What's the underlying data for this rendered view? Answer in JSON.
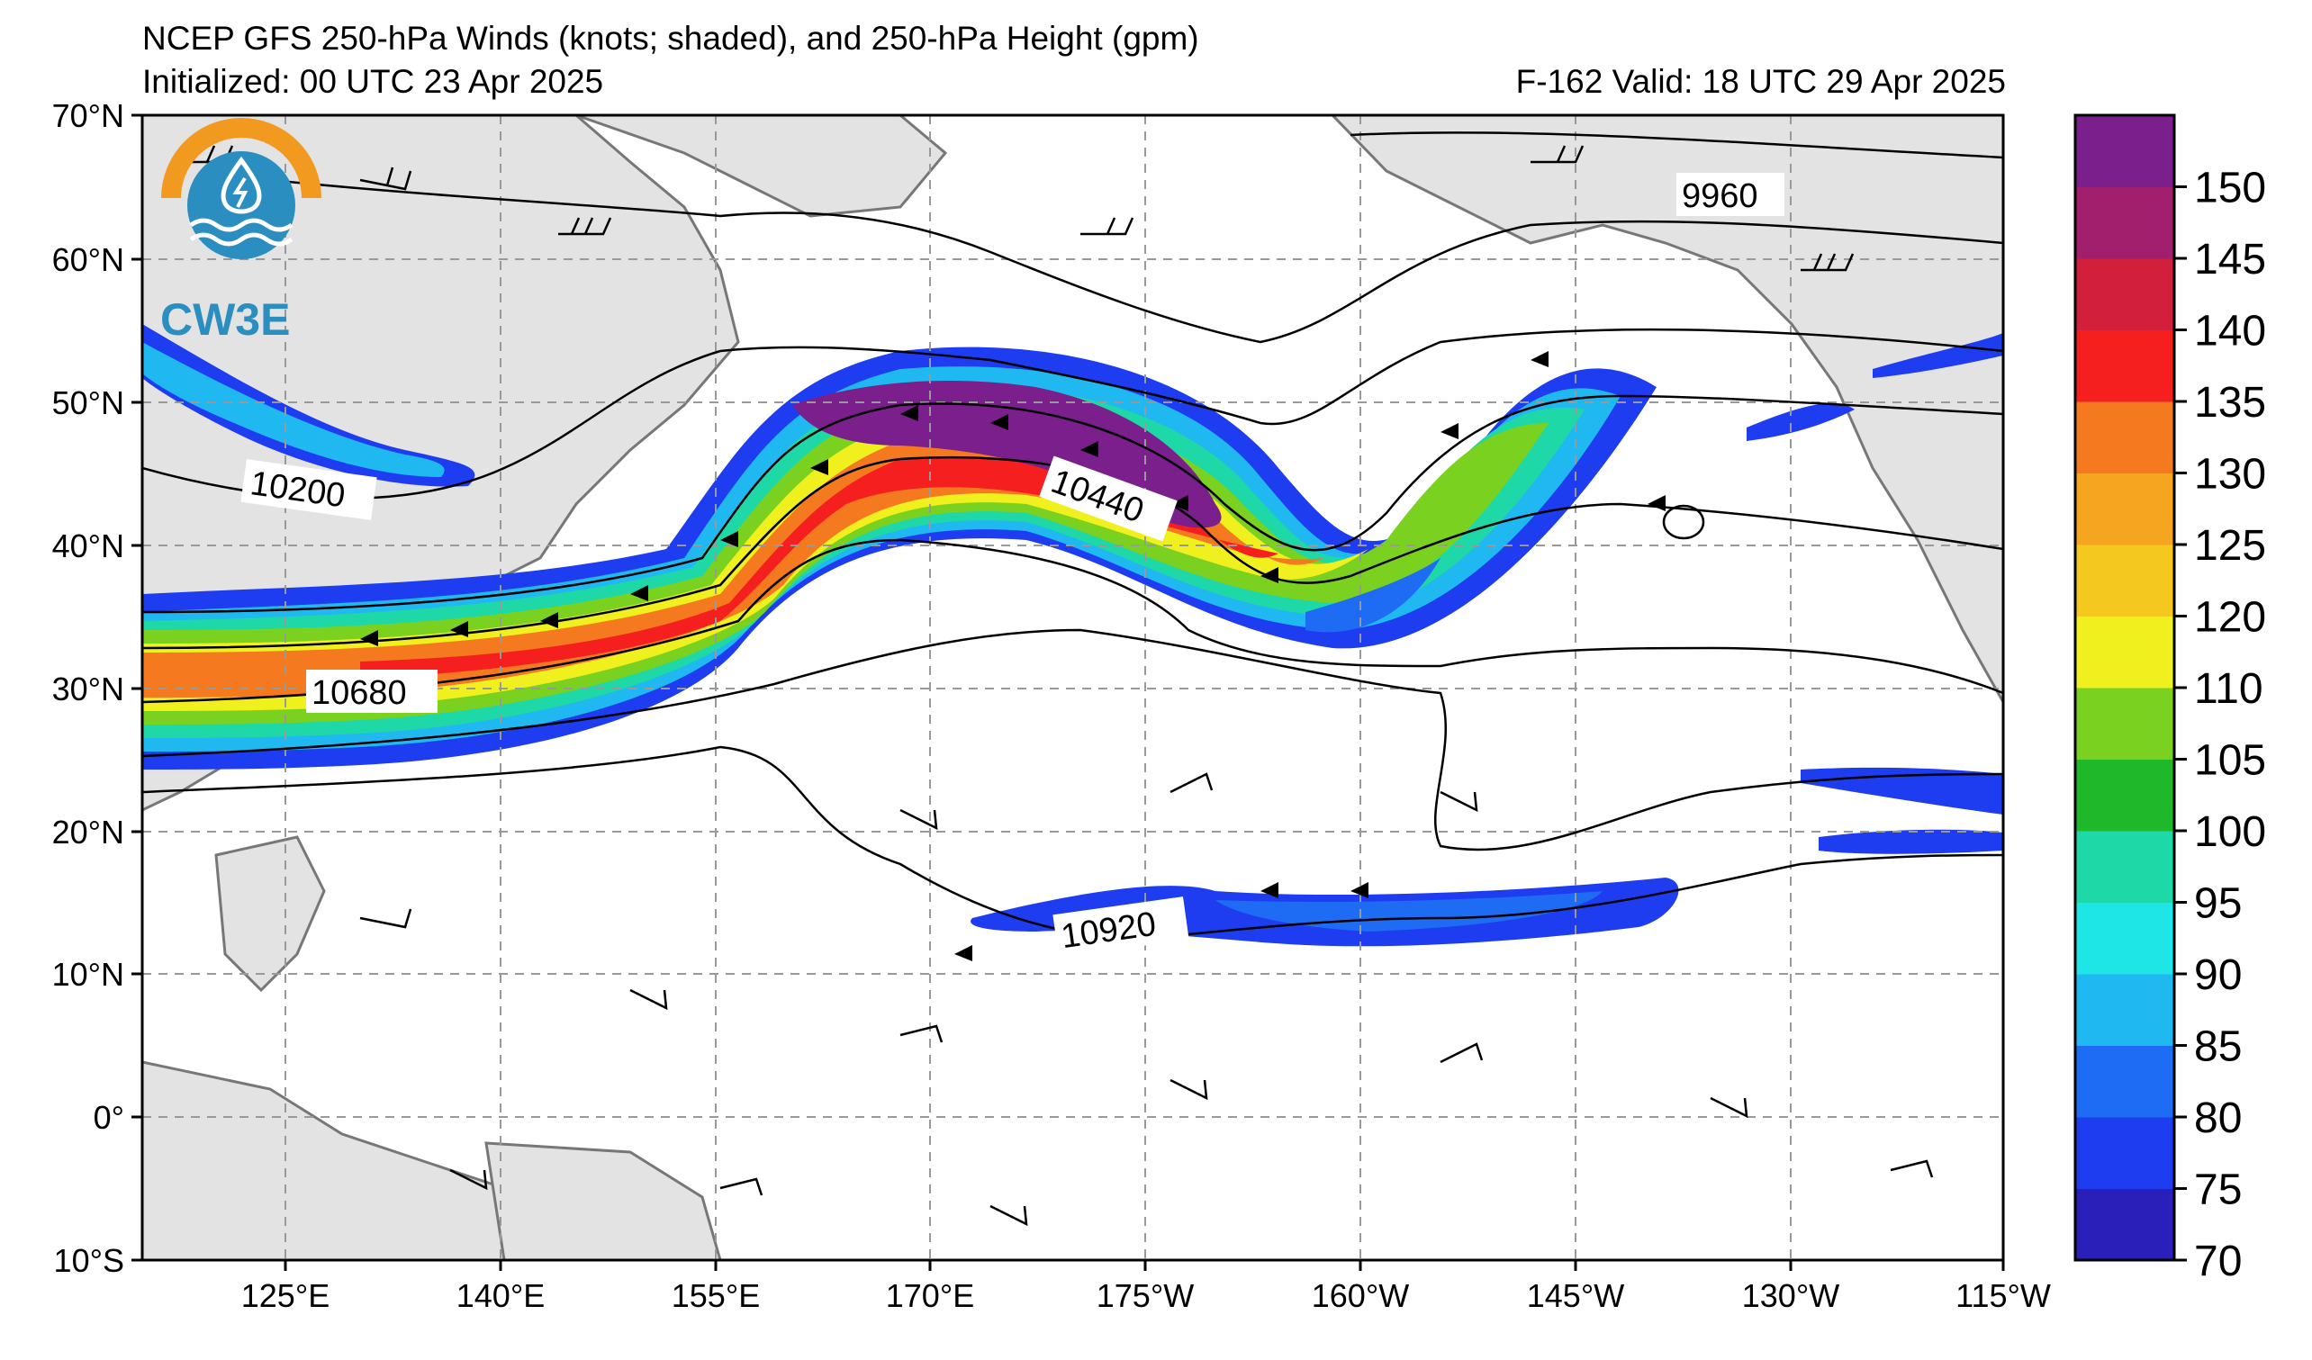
{
  "title": "NCEP GFS 250-hPa Winds (knots; shaded), and 250-hPa Height (gpm)",
  "initialized": "Initialized: 00 UTC 23 Apr 2025",
  "valid": "F-162  Valid: 18 UTC 29 Apr 2025",
  "logo_text": "CW3E",
  "lat_labels": [
    "70°N",
    "60°N",
    "50°N",
    "40°N",
    "30°N",
    "20°N",
    "10°N",
    "0°",
    "10°S"
  ],
  "lon_labels": [
    "125°E",
    "140°E",
    "155°E",
    "170°E",
    "175°W",
    "160°W",
    "145°W",
    "130°W",
    "115°W"
  ],
  "contour_labels": [
    "9960",
    "10200",
    "10440",
    "10680",
    "10920"
  ],
  "colorbar": {
    "ticks": [
      "150",
      "145",
      "140",
      "135",
      "130",
      "125",
      "120",
      "110",
      "105",
      "100",
      "95",
      "90",
      "85",
      "80",
      "75",
      "70"
    ],
    "colors": [
      "#2a1fb8",
      "#1e3cf0",
      "#1e6cf4",
      "#1fb8f0",
      "#1fe6e6",
      "#1fd8a8",
      "#1fb82a",
      "#7ad11f",
      "#f0f01f",
      "#f5c81f",
      "#f5a51f",
      "#f57a1f",
      "#f51f1f",
      "#d11f3c",
      "#a11f6c",
      "#7a1f8c"
    ]
  }
}
